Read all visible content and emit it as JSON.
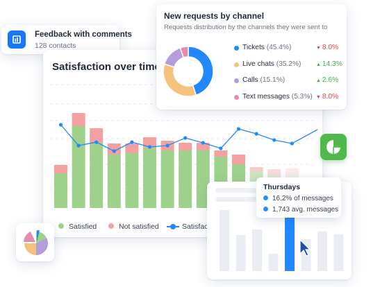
{
  "feedback": {
    "title": "Feedback with comments",
    "subtitle": "128 contacts",
    "icon": "bar-chart-icon"
  },
  "satisfaction": {
    "title": "Satisfaction over time",
    "legend": [
      {
        "label": "Satisfied",
        "color": "#9ed28b"
      },
      {
        "label": "Not satisfied",
        "color": "#f2a0a0"
      },
      {
        "label": "Satisfaction",
        "color": "#2188ff"
      }
    ]
  },
  "channels": {
    "title": "New requests by channel",
    "subtitle": "Requests distribution by the channels they were sent to",
    "items": [
      {
        "name": "Tickets",
        "pct": "(45.4%)",
        "delta": "8.0%",
        "direction": "down",
        "color": "#2188ff",
        "share": 45.4
      },
      {
        "name": "Live chats",
        "pct": "(35.2%)",
        "delta": "14.3%",
        "direction": "up",
        "color": "#f4c27a",
        "share": 35.2
      },
      {
        "name": "Calls",
        "pct": "(15.1%)",
        "delta": "2.6%",
        "direction": "up",
        "color": "#b59ddc",
        "share": 15.1
      },
      {
        "name": "Text messages",
        "pct": "(5.3%)",
        "delta": "8.0%",
        "direction": "down",
        "color": "#e58bb0",
        "share": 5.3
      }
    ],
    "colors": {
      "up": "#3cb043",
      "down": "#e2434b"
    }
  },
  "tooltip": {
    "title": "Thursdays",
    "row1_value": "16.2%",
    "row1_text": "of messages",
    "row2_value": "1,743",
    "row2_text": "avg. messages"
  },
  "chart_data": [
    {
      "type": "bar",
      "title": "Satisfaction over time",
      "series": [
        {
          "name": "Satisfied",
          "values": [
            50,
            118,
            94,
            77,
            79,
            87,
            83,
            83,
            83,
            74,
            63,
            52,
            47,
            47
          ]
        },
        {
          "name": "Not satisfied",
          "values": [
            12,
            19,
            21,
            16,
            14,
            15,
            14,
            11,
            11,
            9,
            14,
            7,
            9,
            10
          ]
        },
        {
          "name": "Satisfaction",
          "values": [
            120,
            90,
            95,
            82,
            95,
            88,
            90,
            101,
            94,
            86,
            114,
            107,
            98,
            93
          ]
        }
      ]
    },
    {
      "type": "pie",
      "title": "New requests by channel",
      "categories": [
        "Tickets",
        "Live chats",
        "Calls",
        "Text messages"
      ],
      "values": [
        45.4,
        35.2,
        15.1,
        5.3
      ]
    },
    {
      "type": "bar",
      "highlight": "Thursdays",
      "values": [
        88,
        52,
        60,
        25,
        78,
        46,
        57,
        53
      ]
    }
  ]
}
